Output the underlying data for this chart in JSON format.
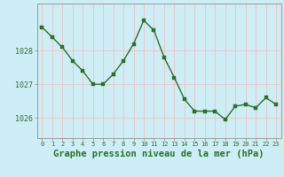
{
  "x": [
    0,
    1,
    2,
    3,
    4,
    5,
    6,
    7,
    8,
    9,
    10,
    11,
    12,
    13,
    14,
    15,
    16,
    17,
    18,
    19,
    20,
    21,
    22,
    23
  ],
  "y": [
    1028.7,
    1028.4,
    1028.1,
    1027.7,
    1027.4,
    1027.0,
    1027.0,
    1027.3,
    1027.7,
    1028.2,
    1028.9,
    1028.6,
    1027.8,
    1027.2,
    1026.55,
    1026.2,
    1026.2,
    1026.2,
    1025.95,
    1026.35,
    1026.4,
    1026.3,
    1026.6,
    1026.4
  ],
  "line_color": "#2d6e2d",
  "marker": "s",
  "marker_size": 2.5,
  "line_width": 1.0,
  "bg_color": "#ceeef5",
  "grid_color": "#e8c8c8",
  "xlabel": "Graphe pression niveau de la mer (hPa)",
  "xlabel_fontsize": 7.5,
  "tick_color": "#2d6e2d",
  "axis_color": "#999999",
  "ylim": [
    1025.4,
    1029.4
  ],
  "yticks": [
    1026,
    1027,
    1028
  ],
  "xlim": [
    -0.5,
    23.5
  ],
  "xticks": [
    0,
    1,
    2,
    3,
    4,
    5,
    6,
    7,
    8,
    9,
    10,
    11,
    12,
    13,
    14,
    15,
    16,
    17,
    18,
    19,
    20,
    21,
    22,
    23
  ],
  "xtick_labels": [
    "0",
    "1",
    "2",
    "3",
    "4",
    "5",
    "6",
    "7",
    "8",
    "9",
    "10",
    "11",
    "12",
    "13",
    "14",
    "15",
    "16",
    "17",
    "18",
    "19",
    "20",
    "21",
    "22",
    "23"
  ]
}
